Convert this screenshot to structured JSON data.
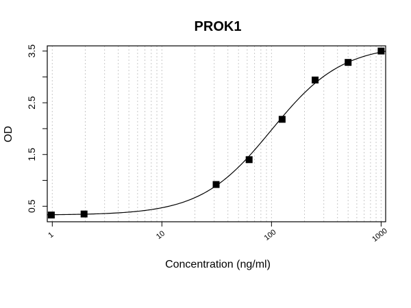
{
  "chart_data": {
    "type": "scatter",
    "title": "PROK1",
    "xlabel": "Concentration (ng/ml)",
    "ylabel": "OD",
    "x_scale": "log",
    "xlim": [
      0.9,
      1100
    ],
    "ylim": [
      0.2,
      3.6
    ],
    "x_ticks": [
      1,
      10,
      100,
      1000
    ],
    "x_tick_labels": [
      "1",
      "10",
      "100",
      "1000"
    ],
    "y_ticks": [
      0.5,
      1.5,
      2.5,
      3.5
    ],
    "y_tick_labels": [
      "0.5",
      "1.5",
      "2.5",
      "3.5"
    ],
    "y_minor_ticks": [
      1.0,
      2.0,
      3.0
    ],
    "grid": "vertical-minor-dotted",
    "series": [
      {
        "points": [
          {
            "x": 0.98,
            "y": 0.33
          },
          {
            "x": 1.95,
            "y": 0.35
          },
          {
            "x": 31.25,
            "y": 0.92
          },
          {
            "x": 62.5,
            "y": 1.4
          },
          {
            "x": 125,
            "y": 2.18
          },
          {
            "x": 250,
            "y": 2.94
          },
          {
            "x": 500,
            "y": 3.28
          },
          {
            "x": 1000,
            "y": 3.5
          }
        ],
        "marker": "square",
        "color": "#000000"
      }
    ],
    "fit_curve": {
      "model": "4PL",
      "bottom": 0.33,
      "top": 3.62,
      "ec50": 100,
      "hill": 1.35,
      "color": "#000000"
    }
  }
}
